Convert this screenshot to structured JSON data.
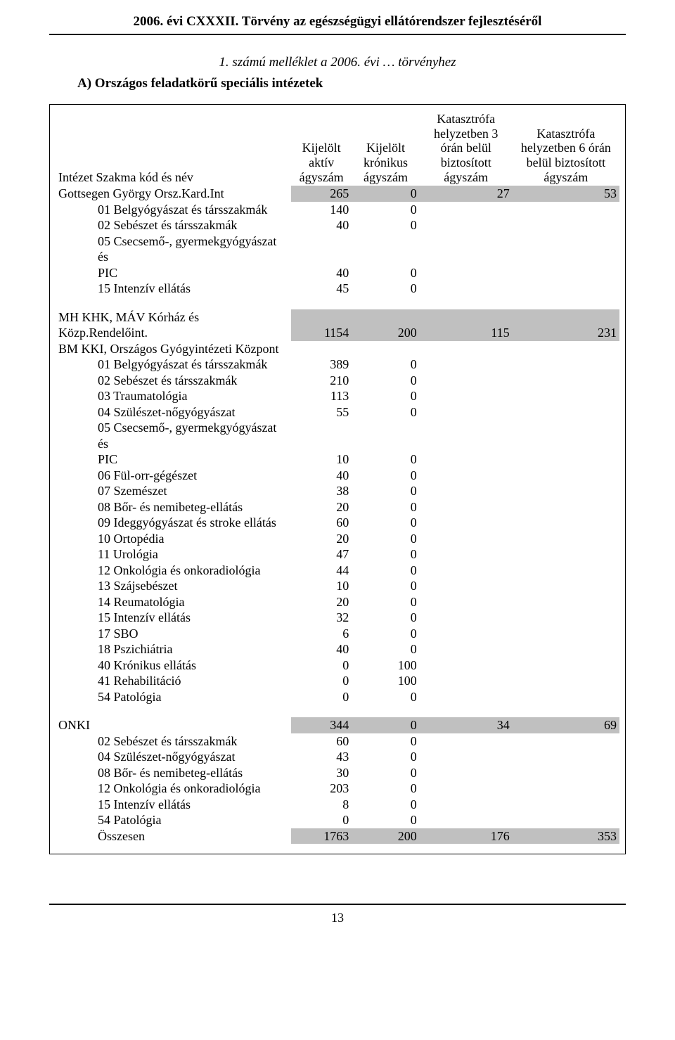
{
  "colors": {
    "text": "#000000",
    "background": "#ffffff",
    "shaded": "#c0c0c0",
    "rule": "#000000"
  },
  "fonts": {
    "family": "Times New Roman",
    "body_size_pt": 14,
    "header_size_pt": 14
  },
  "header_title": "2006. évi CXXXII. Törvény az egészségügyi ellátórendszer fejlesztéséről",
  "attachment_line": "1. számú melléklet a 2006. évi … törvényhez",
  "section_title": "A)  Országos feladatkörű speciális intézetek",
  "column_headers": {
    "c1": "Intézet          Szakma kód és név",
    "c2": "Kijelölt aktív ágyszám",
    "c3": "Kijelölt krónikus ágyszám",
    "c4": "Katasztrófa helyzetben 3 órán belül biztosított ágyszám",
    "c5": "Katasztrófa helyzetben 6 órán belül biztosított ágyszám"
  },
  "institutions": [
    {
      "name": "Gottsegen György Orsz.Kard.Int",
      "v1": "265",
      "v2": "0",
      "v3": "27",
      "v4": "53",
      "rows": [
        {
          "label": "01 Belgyógyászat és társszakmák",
          "a": "140",
          "b": "0"
        },
        {
          "label": "02 Sebészet és társszakmák",
          "a": "40",
          "b": "0"
        },
        {
          "label": "05 Csecsemő-, gyermekgyógyászat és",
          "a": "",
          "b": ""
        },
        {
          "label": "PIC",
          "a": "40",
          "b": "0"
        },
        {
          "label": "15 Intenzív ellátás",
          "a": "45",
          "b": "0"
        }
      ]
    },
    {
      "name": "MH KHK, MÁV Kórház és Közp.Rendelőint.",
      "name2": "BM KKI, Országos Gyógyintézeti Központ",
      "v1": "1154",
      "v2": "200",
      "v3": "115",
      "v4": "231",
      "rows": [
        {
          "label": "01 Belgyógyászat és társszakmák",
          "a": "389",
          "b": "0"
        },
        {
          "label": "02 Sebészet és társszakmák",
          "a": "210",
          "b": "0"
        },
        {
          "label": "03 Traumatológia",
          "a": "113",
          "b": "0"
        },
        {
          "label": "04 Szülészet-nőgyógyászat",
          "a": "55",
          "b": "0"
        },
        {
          "label": "05 Csecsemő-, gyermekgyógyászat és",
          "a": "",
          "b": ""
        },
        {
          "label": "PIC",
          "a": "10",
          "b": "0"
        },
        {
          "label": "06 Fül-orr-gégészet",
          "a": "40",
          "b": "0"
        },
        {
          "label": "07 Szemészet",
          "a": "38",
          "b": "0"
        },
        {
          "label": "08 Bőr- és nemibeteg-ellátás",
          "a": "20",
          "b": "0"
        },
        {
          "label": "09 Ideggyógyászat és stroke ellátás",
          "a": "60",
          "b": "0"
        },
        {
          "label": "10 Ortopédia",
          "a": "20",
          "b": "0"
        },
        {
          "label": "11 Urológia",
          "a": "47",
          "b": "0"
        },
        {
          "label": "12 Onkológia és onkoradiológia",
          "a": "44",
          "b": "0"
        },
        {
          "label": "13 Szájsebészet",
          "a": "10",
          "b": "0"
        },
        {
          "label": "14 Reumatológia",
          "a": "20",
          "b": "0"
        },
        {
          "label": "15 Intenzív ellátás",
          "a": "32",
          "b": "0"
        },
        {
          "label": "17 SBO",
          "a": "6",
          "b": "0"
        },
        {
          "label": "18 Pszichiátria",
          "a": "40",
          "b": "0"
        },
        {
          "label": "40 Krónikus ellátás",
          "a": "0",
          "b": "100"
        },
        {
          "label": "41 Rehabilitáció",
          "a": "0",
          "b": "100"
        },
        {
          "label": "54 Patológia",
          "a": "0",
          "b": "0"
        }
      ]
    },
    {
      "name": "ONKI",
      "v1": "344",
      "v2": "0",
      "v3": "34",
      "v4": "69",
      "rows": [
        {
          "label": "02 Sebészet és társszakmák",
          "a": "60",
          "b": "0"
        },
        {
          "label": "04 Szülészet-nőgyógyászat",
          "a": "43",
          "b": "0"
        },
        {
          "label": "08 Bőr- és nemibeteg-ellátás",
          "a": "30",
          "b": "0"
        },
        {
          "label": "12 Onkológia és onkoradiológia",
          "a": "203",
          "b": "0"
        },
        {
          "label": "15 Intenzív ellátás",
          "a": "8",
          "b": "0"
        },
        {
          "label": "54 Patológia",
          "a": "0",
          "b": "0"
        }
      ]
    }
  ],
  "totals_row": {
    "label": "Összesen",
    "v1": "1763",
    "v2": "200",
    "v3": "176",
    "v4": "353"
  },
  "page_number": "13"
}
